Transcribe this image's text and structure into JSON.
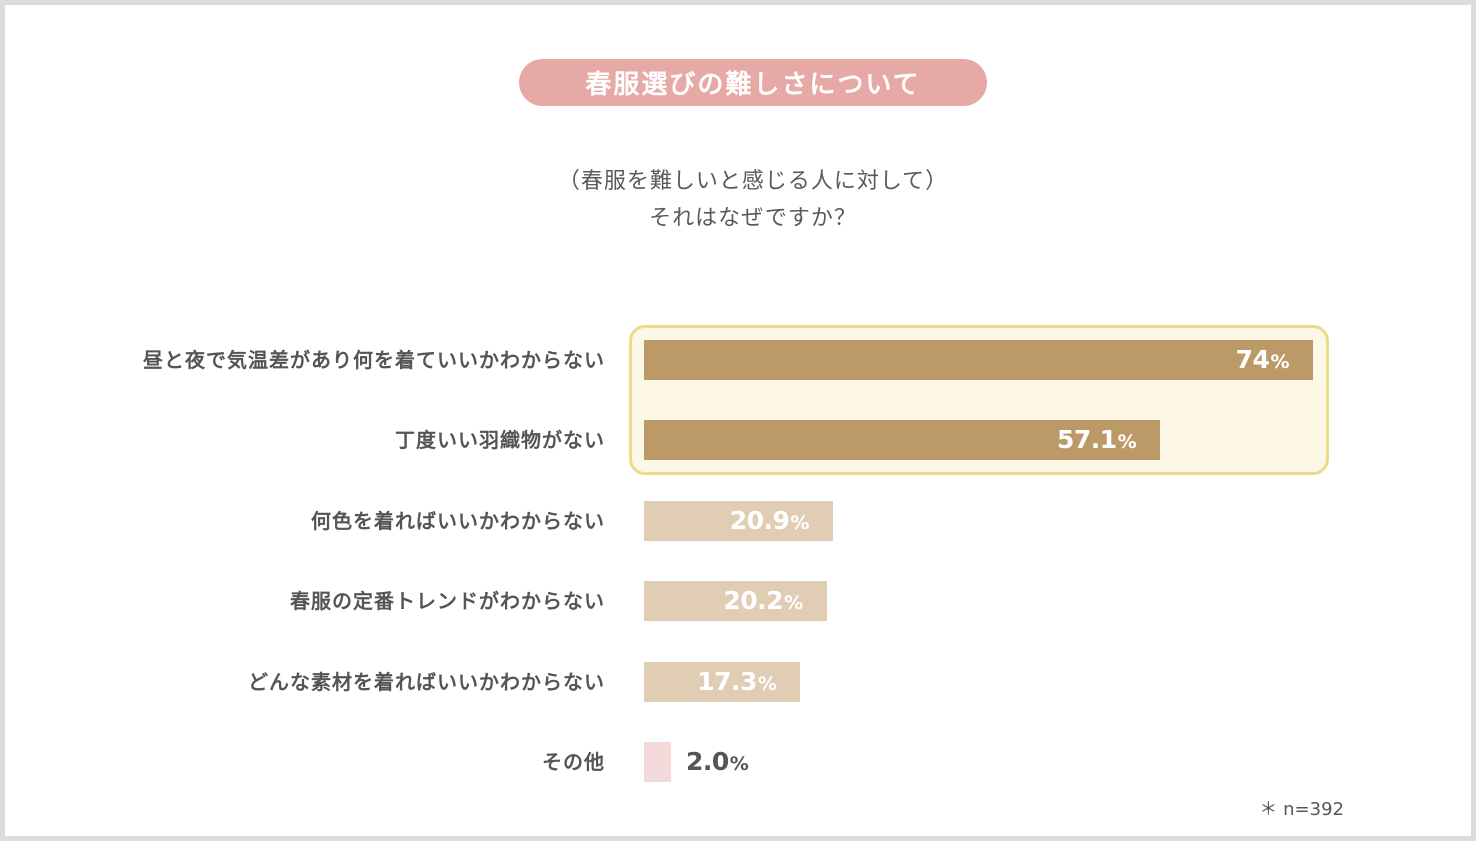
{
  "chart_data": {
    "type": "bar",
    "orientation": "horizontal",
    "title": "春服選びの難しさについて",
    "subtitle": [
      "（春服を難しいと感じる人に対して）",
      "それはなぜですか？"
    ],
    "categories": [
      "昼と夜で気温差があり何を着ていいかわからない",
      "丁度いい羽織物がない",
      "何色を着ればいいかわからない",
      "春服の定番トレンドがわからない",
      "どんな素材を着ればいいかわからない",
      "その他"
    ],
    "values": [
      74,
      57.1,
      20.9,
      20.2,
      17.3,
      2.0
    ],
    "value_labels": [
      "74",
      "57.1",
      "20.9",
      "20.2",
      "17.3",
      "2.0"
    ],
    "unit": "%",
    "highlighted": [
      0,
      1
    ],
    "xlim": [
      0,
      74
    ],
    "note": "＊ n=392"
  },
  "colors": {
    "title_bg": "#e6a9a6",
    "highlight_bar": "#bc9a67",
    "normal_bar": "#e0cdb3",
    "other_bar": "#f3d9d9",
    "highlight_box_bg": "#fdf8e6",
    "highlight_box_border": "#ecdc85",
    "label_text": "#555555",
    "outside_value_text": "#555555"
  }
}
